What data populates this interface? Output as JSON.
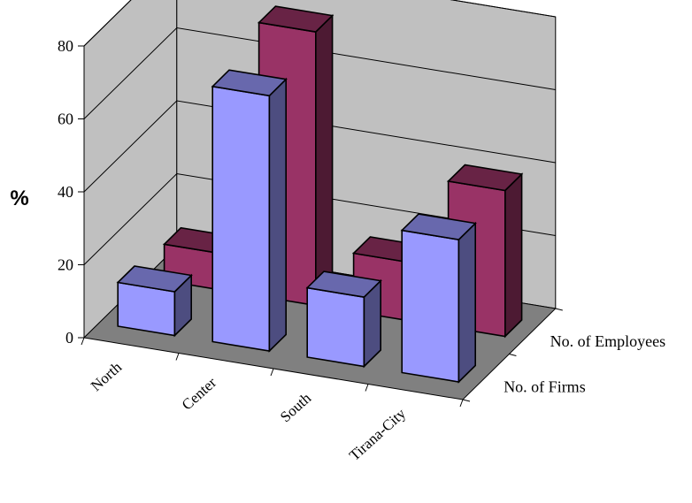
{
  "chart_data": {
    "type": "bar",
    "title": "",
    "xlabel": "",
    "ylabel": "%",
    "ylim": [
      0,
      80
    ],
    "yticks": [
      "0",
      "20",
      "40",
      "60",
      "80"
    ],
    "categories": [
      "North",
      "Center",
      "South",
      "Tirana-City"
    ],
    "series": [
      {
        "name": "No. of Firms",
        "color": "#9999ff",
        "values": [
          12,
          70,
          19,
          39
        ]
      },
      {
        "name": "No. of Employees",
        "color": "#993366",
        "values": [
          10,
          75,
          16,
          40
        ]
      }
    ],
    "grid": true,
    "view": "3d-column",
    "walls_color": "#c0c0c0",
    "floor_color": "#808080"
  }
}
